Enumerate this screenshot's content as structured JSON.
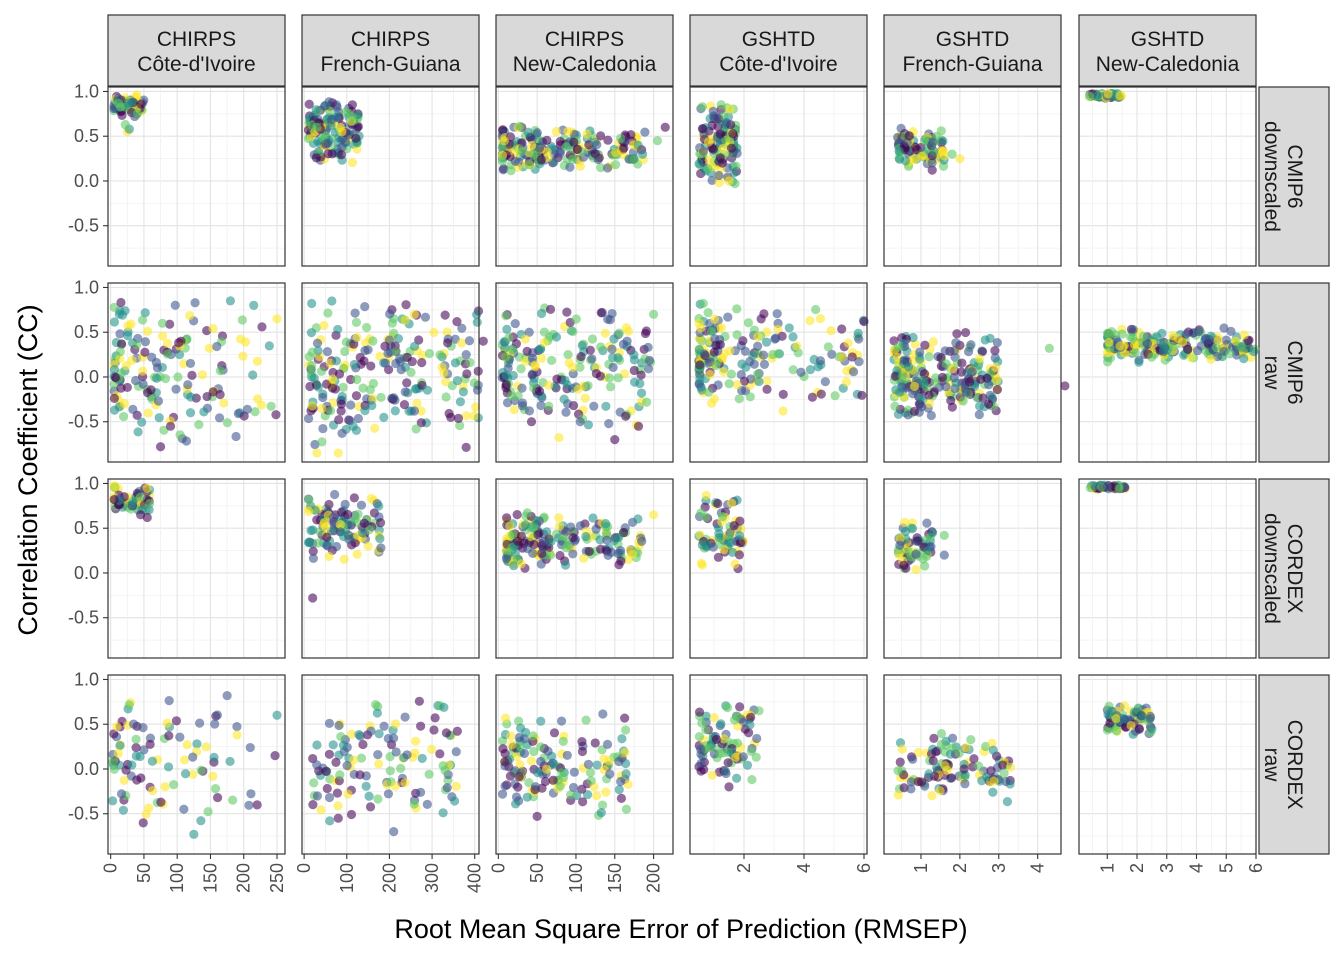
{
  "chart_data": {
    "type": "scatter",
    "xlabel": "Root Mean Square Error of Prediction (RMSEP)",
    "ylabel": "Correlation Coefficient (CC)",
    "y_ticks": [
      1.0,
      0.5,
      0.0,
      -0.5
    ],
    "y_tick_labels": [
      "1.0",
      "0.5",
      "0.0",
      "-0.5"
    ],
    "ylim": [
      -0.95,
      1.05
    ],
    "grid": true,
    "colormap": [
      "#440154",
      "#3b528b",
      "#21908c",
      "#5dc863",
      "#fde725"
    ],
    "columns": [
      {
        "product": "CHIRPS",
        "region": "Côte-d'Ivoire",
        "xlim": [
          -4,
          262
        ],
        "x_ticks": [
          0,
          50,
          100,
          150,
          200,
          250
        ],
        "x_tick_labels": [
          "0",
          "50",
          "100",
          "150",
          "200",
          "250"
        ]
      },
      {
        "product": "CHIRPS",
        "region": "French-Guiana",
        "xlim": [
          -5,
          410
        ],
        "x_ticks": [
          0,
          100,
          200,
          300,
          400
        ],
        "x_tick_labels": [
          "0",
          "100",
          "200",
          "300",
          "400"
        ]
      },
      {
        "product": "CHIRPS",
        "region": "New-Caledonia",
        "xlim": [
          -3,
          225
        ],
        "x_ticks": [
          0,
          50,
          100,
          150,
          200
        ],
        "x_tick_labels": [
          "0",
          "50",
          "100",
          "150",
          "200"
        ]
      },
      {
        "product": "GSHTD",
        "region": "Côte-d'Ivoire",
        "xlim": [
          0.2,
          6.1
        ],
        "x_ticks": [
          2,
          4,
          6
        ],
        "x_tick_labels": [
          "2",
          "4",
          "6"
        ]
      },
      {
        "product": "GSHTD",
        "region": "French-Guiana",
        "xlim": [
          0.05,
          4.6
        ],
        "x_ticks": [
          1,
          2,
          3,
          4
        ],
        "x_tick_labels": [
          "1",
          "2",
          "3",
          "4"
        ]
      },
      {
        "product": "GSHTD",
        "region": "New-Caledonia",
        "xlim": [
          0.05,
          6.0
        ],
        "x_ticks": [
          1,
          2,
          3,
          4,
          5,
          6
        ],
        "x_tick_labels": [
          "1",
          "2",
          "3",
          "4",
          "5",
          "6"
        ]
      }
    ],
    "rows": [
      {
        "source": "CMIP6",
        "kind": "downscaled"
      },
      {
        "source": "CMIP6",
        "kind": "raw"
      },
      {
        "source": "CORDEX",
        "kind": "downscaled"
      },
      {
        "source": "CORDEX",
        "kind": "raw"
      }
    ],
    "point_clouds": [
      [
        {
          "x": [
            5,
            50
          ],
          "y": [
            0.7,
            1.0
          ],
          "n": 70,
          "skew": 1.4,
          "extra": [
            [
              25,
              0.55
            ],
            [
              28,
              0.58
            ],
            [
              22,
              0.63
            ],
            [
              40,
              0.75
            ]
          ]
        },
        {
          "x": [
            10,
            130
          ],
          "y": [
            0.2,
            0.92
          ],
          "n": 140,
          "skew": 1.3,
          "extra": [
            [
              35,
              0.65
            ],
            [
              38,
              0.58
            ],
            [
              30,
              0.6
            ]
          ]
        },
        {
          "x": [
            5,
            190
          ],
          "y": [
            0.1,
            0.62
          ],
          "n": 200,
          "skew": 1.6,
          "extra": [
            [
              215,
              0.6
            ],
            [
              205,
              0.45
            ],
            [
              180,
              0.4
            ]
          ]
        },
        {
          "x": [
            0.5,
            1.8
          ],
          "y": [
            -0.05,
            0.92
          ],
          "n": 130,
          "skew": 1.0,
          "extra": [
            [
              1.7,
              -0.03
            ],
            [
              1.5,
              0.0
            ]
          ]
        },
        {
          "x": [
            0.4,
            1.6
          ],
          "y": [
            0.1,
            0.6
          ],
          "n": 90,
          "skew": 1.3,
          "extra": [
            [
              2.0,
              0.25
            ],
            [
              1.6,
              0.28
            ],
            [
              1.8,
              0.3
            ]
          ]
        },
        {
          "x": [
            0.4,
            1.5
          ],
          "y": [
            0.92,
            0.98
          ],
          "n": 60,
          "skew": 1.2,
          "extra": []
        }
      ],
      [
        {
          "x": [
            5,
            250
          ],
          "y": [
            -0.8,
            0.97
          ],
          "n": 160,
          "skew": 1.8,
          "extra": [
            [
              250,
              0.65
            ],
            [
              215,
              0.8
            ],
            [
              180,
              0.85
            ],
            [
              120,
              -0.4
            ],
            [
              90,
              -0.55
            ],
            [
              75,
              -0.78
            ]
          ]
        },
        {
          "x": [
            10,
            410
          ],
          "y": [
            -0.85,
            0.92
          ],
          "n": 230,
          "skew": 1.1,
          "extra": [
            [
              30,
              -0.85
            ],
            [
              80,
              -0.85
            ],
            [
              380,
              0.25
            ],
            [
              420,
              0.4
            ]
          ]
        },
        {
          "x": [
            5,
            200
          ],
          "y": [
            -0.7,
            0.85
          ],
          "n": 200,
          "skew": 1.3,
          "extra": [
            [
              150,
              -0.7
            ],
            [
              200,
              0.7
            ],
            [
              165,
              0.55
            ]
          ]
        },
        {
          "x": [
            0.5,
            6.0
          ],
          "y": [
            -0.4,
            0.88
          ],
          "n": 190,
          "skew": 2.0,
          "extra": [
            [
              6.0,
              0.62
            ],
            [
              4.2,
              0.63
            ],
            [
              3.3,
              -0.38
            ],
            [
              2.5,
              -0.05
            ]
          ]
        },
        {
          "x": [
            0.3,
            3.0
          ],
          "y": [
            -0.5,
            0.55
          ],
          "n": 230,
          "skew": 1.2,
          "extra": [
            [
              4.3,
              0.32
            ],
            [
              4.7,
              -0.1
            ],
            [
              2.5,
              -0.42
            ]
          ]
        },
        {
          "x": [
            1.0,
            6.0
          ],
          "y": [
            0.15,
            0.55
          ],
          "n": 220,
          "skew": 1.5,
          "extra": []
        }
      ],
      [
        {
          "x": [
            5,
            60
          ],
          "y": [
            0.65,
            1.0
          ],
          "n": 60,
          "skew": 1.3,
          "extra": [
            [
              55,
              0.62
            ],
            [
              45,
              0.65
            ]
          ]
        },
        {
          "x": [
            10,
            180
          ],
          "y": [
            0.1,
            0.92
          ],
          "n": 110,
          "skew": 1.4,
          "extra": [
            [
              20,
              -0.28
            ],
            [
              150,
              0.3
            ],
            [
              180,
              0.28
            ]
          ]
        },
        {
          "x": [
            10,
            185
          ],
          "y": [
            0.0,
            0.7
          ],
          "n": 190,
          "skew": 1.4,
          "extra": [
            [
              200,
              0.65
            ]
          ]
        },
        {
          "x": [
            0.5,
            2.0
          ],
          "y": [
            0.0,
            0.95
          ],
          "n": 70,
          "skew": 1.2,
          "extra": [
            [
              1.8,
              0.05
            ],
            [
              1.7,
              0.1
            ]
          ]
        },
        {
          "x": [
            0.4,
            1.3
          ],
          "y": [
            0.0,
            0.6
          ],
          "n": 60,
          "skew": 1.2,
          "extra": [
            [
              1.6,
              0.42
            ],
            [
              1.6,
              0.2
            ],
            [
              1.3,
              0.45
            ]
          ]
        },
        {
          "x": [
            0.4,
            1.6
          ],
          "y": [
            0.93,
            0.99
          ],
          "n": 55,
          "skew": 1.2,
          "extra": []
        }
      ],
      [
        {
          "x": [
            3,
            250
          ],
          "y": [
            -0.75,
            0.97
          ],
          "n": 90,
          "skew": 1.6,
          "extra": [
            [
              250,
              0.6
            ],
            [
              190,
              0.38
            ],
            [
              175,
              0.82
            ],
            [
              125,
              -0.73
            ],
            [
              110,
              -0.45
            ]
          ]
        },
        {
          "x": [
            20,
            360
          ],
          "y": [
            -0.72,
            0.88
          ],
          "n": 120,
          "skew": 1.2,
          "extra": [
            [
              210,
              -0.7
            ],
            [
              60,
              -0.58
            ],
            [
              80,
              -0.55
            ]
          ]
        },
        {
          "x": [
            5,
            170
          ],
          "y": [
            -0.55,
            0.62
          ],
          "n": 150,
          "skew": 1.3,
          "extra": [
            [
              165,
              -0.45
            ],
            [
              50,
              -0.53
            ]
          ]
        },
        {
          "x": [
            0.5,
            2.5
          ],
          "y": [
            -0.22,
            0.82
          ],
          "n": 90,
          "skew": 1.2,
          "extra": [
            [
              2.5,
              0.65
            ],
            [
              1.5,
              -0.2
            ],
            [
              1.4,
              -0.05
            ]
          ]
        },
        {
          "x": [
            0.4,
            3.3
          ],
          "y": [
            -0.4,
            0.45
          ],
          "n": 110,
          "skew": 1.2,
          "extra": [
            [
              3.3,
              0.02
            ],
            [
              2.8,
              -0.02
            ]
          ]
        },
        {
          "x": [
            1.0,
            2.5
          ],
          "y": [
            0.38,
            0.72
          ],
          "n": 70,
          "skew": 1.0,
          "extra": [
            [
              2.5,
              0.45
            ]
          ]
        }
      ]
    ]
  }
}
